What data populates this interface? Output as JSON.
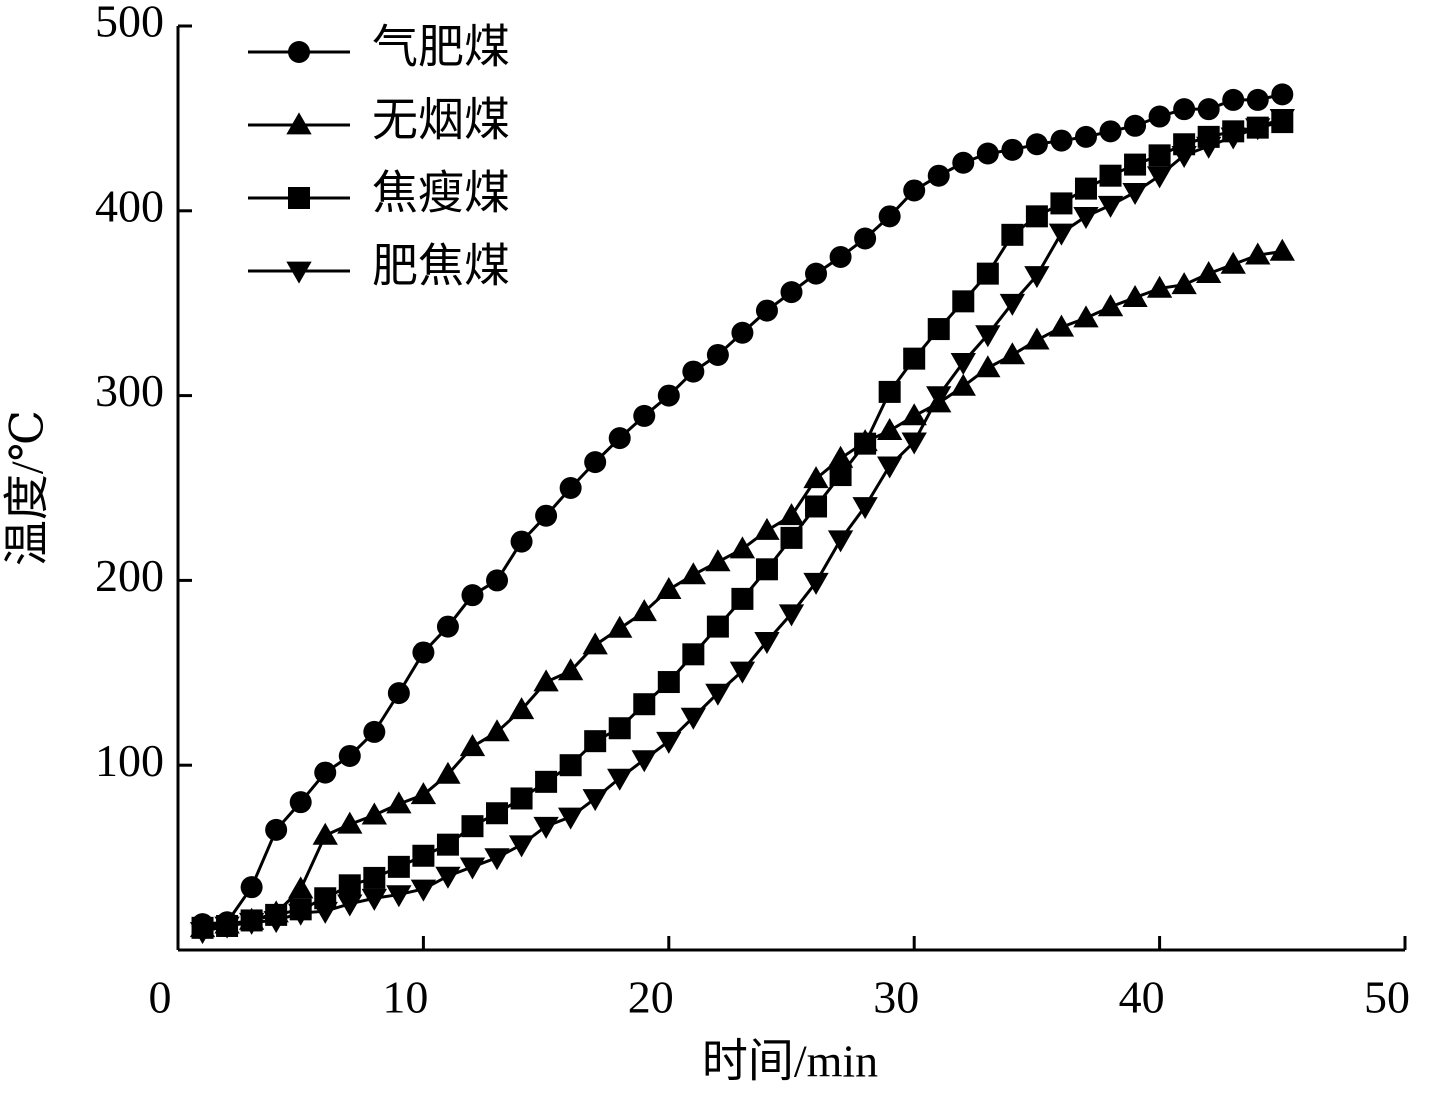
{
  "chart_data": {
    "type": "line",
    "x": [
      1,
      2,
      3,
      4,
      5,
      6,
      7,
      8,
      9,
      10,
      11,
      12,
      13,
      14,
      15,
      16,
      17,
      18,
      19,
      20,
      21,
      22,
      23,
      24,
      25,
      26,
      27,
      28,
      29,
      30,
      31,
      32,
      33,
      34,
      35,
      36,
      37,
      38,
      39,
      40,
      41,
      42,
      43,
      44,
      45
    ],
    "series": [
      {
        "name": "气肥煤",
        "color": "#000000",
        "marker": "circle",
        "values": [
          14,
          15,
          34,
          65,
          80,
          96,
          105,
          118,
          139,
          161,
          175,
          192,
          200,
          221,
          235,
          250,
          264,
          277,
          289,
          300,
          313,
          322,
          334,
          346,
          356,
          366,
          375,
          385,
          397,
          411,
          419,
          426,
          431,
          433,
          436,
          438,
          440,
          443,
          446,
          451,
          455,
          455,
          460,
          460,
          463
        ]
      },
      {
        "name": "无烟煤",
        "color": "#000000",
        "marker": "triangle",
        "values": [
          12,
          14,
          16,
          20,
          33,
          62,
          68,
          73,
          79,
          84,
          95,
          110,
          118,
          130,
          145,
          151,
          165,
          174,
          183,
          195,
          203,
          210,
          217,
          227,
          235,
          255,
          266,
          275,
          281,
          289,
          296,
          305,
          315,
          322,
          330,
          337,
          342,
          348,
          353,
          358,
          360,
          366,
          371,
          376,
          378
        ]
      },
      {
        "name": "焦瘦煤",
        "color": "#000000",
        "marker": "square",
        "values": [
          12,
          13,
          16,
          19,
          22,
          28,
          35,
          39,
          45,
          51,
          57,
          67,
          74,
          82,
          91,
          100,
          113,
          120,
          133,
          145,
          160,
          175,
          190,
          206,
          223,
          240,
          257,
          274,
          302,
          320,
          336,
          351,
          366,
          387,
          397,
          404,
          412,
          419,
          425,
          430,
          436,
          440,
          443,
          445,
          448
        ]
      },
      {
        "name": "肥焦煤",
        "color": "#000000",
        "marker": "triangle-down",
        "values": [
          10,
          13,
          15,
          16,
          20,
          21,
          25,
          28,
          30,
          33,
          40,
          45,
          50,
          57,
          67,
          72,
          82,
          93,
          103,
          113,
          126,
          139,
          151,
          167,
          182,
          199,
          222,
          240,
          262,
          275,
          300,
          318,
          333,
          350,
          365,
          388,
          397,
          403,
          410,
          419,
          430,
          435,
          440,
          445,
          450
        ]
      }
    ],
    "xlabel": "时间/min",
    "ylabel": "温度/℃",
    "xlim": [
      0,
      50
    ],
    "xticks": [
      0,
      10,
      20,
      30,
      40,
      50
    ],
    "ylim": [
      0,
      500
    ],
    "yticks": [
      100,
      200,
      300,
      400,
      500
    ],
    "legend": "upper left",
    "grid": false
  }
}
